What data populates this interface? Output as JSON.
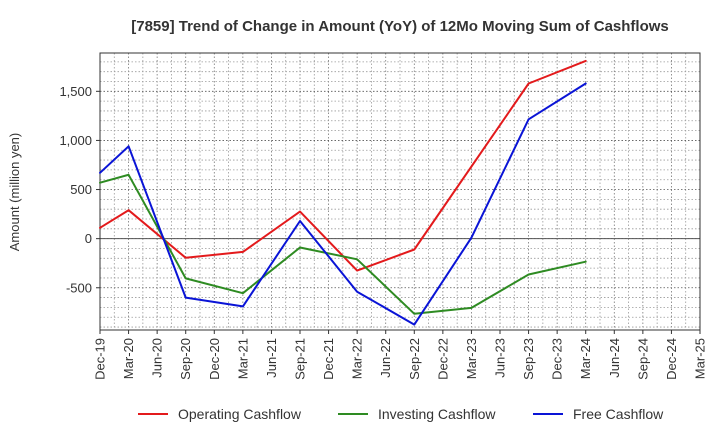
{
  "chart_data": {
    "type": "line",
    "title": "[7859]  Trend of Change in Amount (YoY) of 12Mo Moving Sum of Cashflows",
    "xlabel": "",
    "ylabel": "Amount (million yen)",
    "ylim": [
      -930,
      1890
    ],
    "yticks": [
      -500,
      0,
      500,
      1000,
      1500
    ],
    "ytick_labels": [
      "-500",
      "0",
      "500",
      "1,000",
      "1,500"
    ],
    "grid": true,
    "legend_position": "bottom",
    "categories": [
      "Dec-19",
      "Mar-20",
      "Jun-20",
      "Sep-20",
      "Dec-20",
      "Mar-21",
      "Jun-21",
      "Sep-21",
      "Dec-21",
      "Mar-22",
      "Jun-22",
      "Sep-22",
      "Dec-22",
      "Mar-23",
      "Jun-23",
      "Sep-23",
      "Dec-23",
      "Mar-24",
      "Jun-24",
      "Sep-24",
      "Dec-24",
      "Mar-25"
    ],
    "series": [
      {
        "name": "Operating Cashflow",
        "color": "#e31a1c",
        "values": [
          110,
          290,
          null,
          -195,
          null,
          -135,
          null,
          275,
          null,
          -325,
          null,
          -110,
          null,
          null,
          null,
          1580,
          null,
          1810,
          null,
          null,
          null,
          null
        ]
      },
      {
        "name": "Investing Cashflow",
        "color": "#2e8b22",
        "values": [
          570,
          650,
          null,
          -405,
          null,
          -555,
          null,
          -90,
          null,
          -210,
          null,
          -765,
          null,
          -705,
          null,
          -365,
          null,
          -235,
          null,
          null,
          null,
          null
        ]
      },
      {
        "name": "Free Cashflow",
        "color": "#0a14d6",
        "values": [
          670,
          940,
          null,
          -600,
          null,
          -690,
          null,
          180,
          null,
          -540,
          null,
          -875,
          null,
          10,
          null,
          1215,
          null,
          1580,
          null,
          null,
          null,
          null
        ]
      }
    ]
  }
}
